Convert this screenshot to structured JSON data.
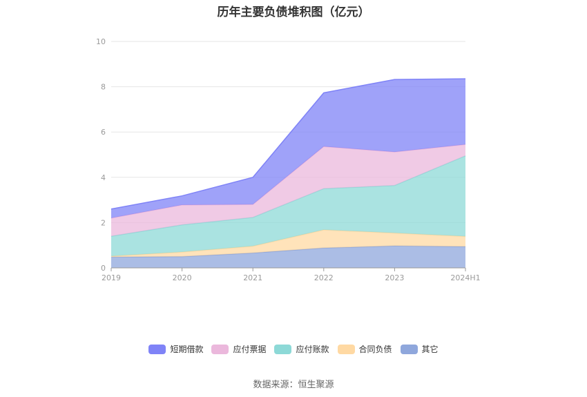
{
  "title": "历年主要负债堆积图（亿元）",
  "source": "数据来源：恒生聚源",
  "chart_data": {
    "type": "area",
    "stacked": true,
    "categories": [
      "2019",
      "2020",
      "2021",
      "2022",
      "2023",
      "2024H1"
    ],
    "ylim": [
      0,
      10
    ],
    "yticks": [
      "0",
      "2",
      "4",
      "6",
      "8",
      "10"
    ],
    "grid": true,
    "legend_position": "bottom",
    "series": [
      {
        "name": "其它",
        "color": "#8fa7dc",
        "values": [
          0.48,
          0.5,
          0.66,
          0.88,
          0.97,
          0.94
        ]
      },
      {
        "name": "合同负债",
        "color": "#ffd9a3",
        "values": [
          0.04,
          0.2,
          0.3,
          0.8,
          0.57,
          0.45
        ]
      },
      {
        "name": "应付账款",
        "color": "#8dd9d7",
        "values": [
          0.88,
          1.2,
          1.27,
          1.82,
          2.1,
          3.56
        ]
      },
      {
        "name": "应付票据",
        "color": "#ebb8dc",
        "values": [
          0.8,
          0.88,
          0.57,
          1.86,
          1.48,
          0.5
        ]
      },
      {
        "name": "短期借款",
        "color": "#7f83f7",
        "values": [
          0.4,
          0.4,
          1.2,
          2.37,
          3.2,
          2.9
        ]
      }
    ]
  }
}
